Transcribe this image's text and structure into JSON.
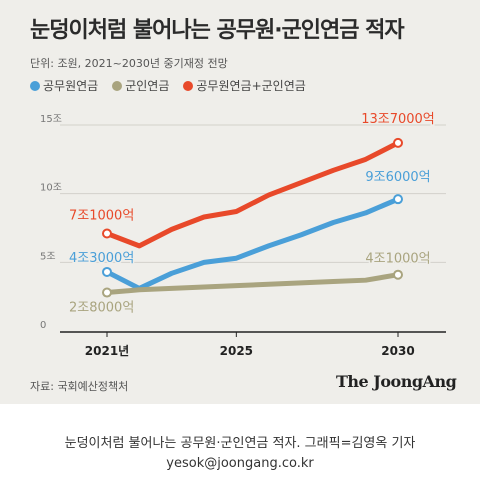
{
  "card": {
    "title": "눈덩이처럼 불어나는 공무원·군인연금 적자",
    "unit": "단위: 조원, 2021~2030년 중기재정 전망",
    "legend": [
      {
        "label": "공무원연금",
        "color": "#4a9fd8"
      },
      {
        "label": "군인연금",
        "color": "#a9a47f"
      },
      {
        "label": "공무원연금+군인연금",
        "color": "#e8492a"
      }
    ],
    "source": "자료: 국회예산정책처",
    "logo": "The JoongAng"
  },
  "caption": "눈덩이처럼 불어나는 공무원·군인연금 적자. 그래픽=김영옥 기자",
  "email": "yesok@joongang.co.kr",
  "chart_data": {
    "type": "line",
    "x": [
      2021,
      2022,
      2023,
      2024,
      2025,
      2026,
      2027,
      2028,
      2029,
      2030
    ],
    "ylim": [
      0,
      15
    ],
    "yticks": [
      0,
      5,
      10,
      15
    ],
    "ytick_labels": [
      "0",
      "5조",
      "10조",
      "15조"
    ],
    "xtick_values": [
      2021,
      2025,
      2030
    ],
    "xtick_labels": [
      "2021년",
      "2025",
      "2030"
    ],
    "grid": true,
    "series": [
      {
        "name": "공무원연금+군인연금",
        "color": "#e8492a",
        "values": [
          7.1,
          6.2,
          7.4,
          8.3,
          8.7,
          9.9,
          10.8,
          11.7,
          12.5,
          13.7
        ],
        "labels": [
          {
            "x": 2021,
            "text": "7조1000억"
          },
          {
            "x": 2030,
            "text": "13조7000억"
          }
        ]
      },
      {
        "name": "공무원연금",
        "color": "#4a9fd8",
        "values": [
          4.3,
          3.1,
          4.2,
          5.0,
          5.3,
          6.2,
          7.0,
          7.9,
          8.6,
          9.6
        ],
        "labels": [
          {
            "x": 2021,
            "text": "4조3000억"
          },
          {
            "x": 2030,
            "text": "9조6000억"
          }
        ]
      },
      {
        "name": "군인연금",
        "color": "#a9a47f",
        "values": [
          2.8,
          3.0,
          3.1,
          3.2,
          3.3,
          3.4,
          3.5,
          3.6,
          3.7,
          4.1
        ],
        "labels": [
          {
            "x": 2021,
            "text": "2조8000억"
          },
          {
            "x": 2030,
            "text": "4조1000억"
          }
        ]
      }
    ]
  }
}
